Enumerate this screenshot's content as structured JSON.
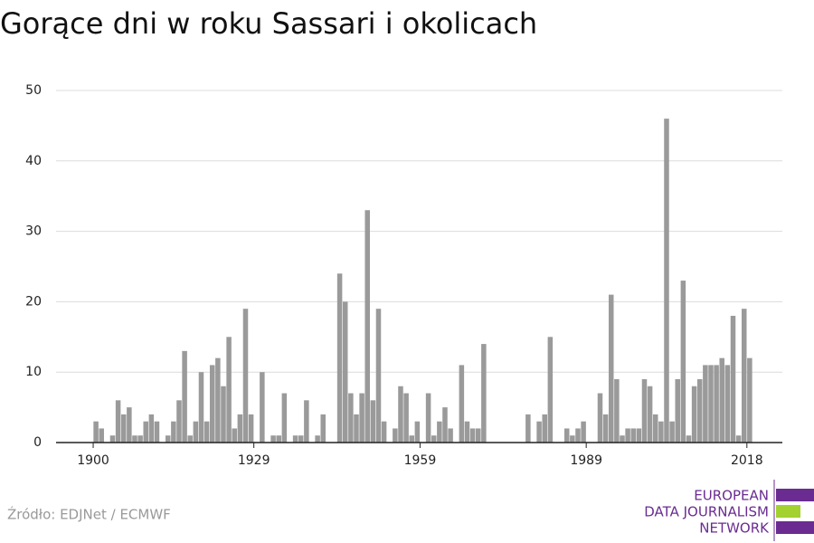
{
  "chart_data": {
    "type": "bar",
    "title": "Gorące dni w roku Sassari i okolicach",
    "source": "Źródło: EDJNet / ECMWF",
    "color": "#9a9a9a",
    "grid": true,
    "x": [
      1900,
      1901,
      1902,
      1903,
      1904,
      1905,
      1906,
      1907,
      1908,
      1909,
      1910,
      1911,
      1912,
      1913,
      1914,
      1915,
      1916,
      1917,
      1918,
      1919,
      1920,
      1921,
      1922,
      1923,
      1924,
      1925,
      1926,
      1927,
      1928,
      1929,
      1930,
      1931,
      1932,
      1933,
      1934,
      1935,
      1936,
      1937,
      1938,
      1939,
      1940,
      1941,
      1942,
      1943,
      1944,
      1945,
      1946,
      1947,
      1948,
      1949,
      1950,
      1951,
      1952,
      1953,
      1954,
      1955,
      1956,
      1957,
      1958,
      1959,
      1960,
      1961,
      1962,
      1963,
      1964,
      1965,
      1966,
      1967,
      1968,
      1969,
      1970,
      1971,
      1972,
      1973,
      1974,
      1975,
      1976,
      1977,
      1978,
      1979,
      1980,
      1981,
      1982,
      1983,
      1984,
      1985,
      1986,
      1987,
      1988,
      1989,
      1990,
      1991,
      1992,
      1993,
      1994,
      1995,
      1996,
      1997,
      1998,
      1999,
      2000,
      2001,
      2002,
      2003,
      2004,
      2005,
      2006,
      2007,
      2008,
      2009,
      2010,
      2011,
      2012,
      2013,
      2014,
      2015,
      2016,
      2017,
      2018
    ],
    "values": [
      3,
      2,
      0,
      1,
      6,
      4,
      5,
      1,
      1,
      3,
      4,
      3,
      0,
      1,
      3,
      6,
      13,
      1,
      3,
      10,
      3,
      11,
      12,
      8,
      15,
      2,
      4,
      19,
      4,
      0,
      10,
      0,
      1,
      1,
      7,
      0,
      1,
      1,
      6,
      0,
      1,
      4,
      0,
      0,
      24,
      20,
      7,
      4,
      7,
      33,
      6,
      19,
      3,
      0,
      2,
      8,
      7,
      1,
      3,
      0,
      7,
      1,
      3,
      5,
      2,
      0,
      11,
      3,
      2,
      2,
      14,
      0,
      0,
      0,
      0,
      0,
      0,
      0,
      4,
      0,
      3,
      4,
      15,
      0,
      0,
      2,
      1,
      2,
      3,
      0,
      0,
      7,
      4,
      21,
      9,
      1,
      2,
      2,
      2,
      9,
      8,
      4,
      3,
      46,
      3,
      9,
      23,
      1,
      8,
      9,
      11,
      11,
      11,
      12,
      11,
      18,
      1,
      19,
      12
    ],
    "xlim": [
      1893.3,
      2024.4
    ],
    "xticks": [
      1900,
      1929,
      1959,
      1989,
      2018
    ],
    "ylim": [
      0,
      50
    ],
    "yticks": [
      0,
      10,
      20,
      30,
      40,
      50
    ]
  },
  "logo": {
    "lines": [
      "EUROPEAN",
      "DATA JOURNALISM",
      "NETWORK"
    ]
  }
}
